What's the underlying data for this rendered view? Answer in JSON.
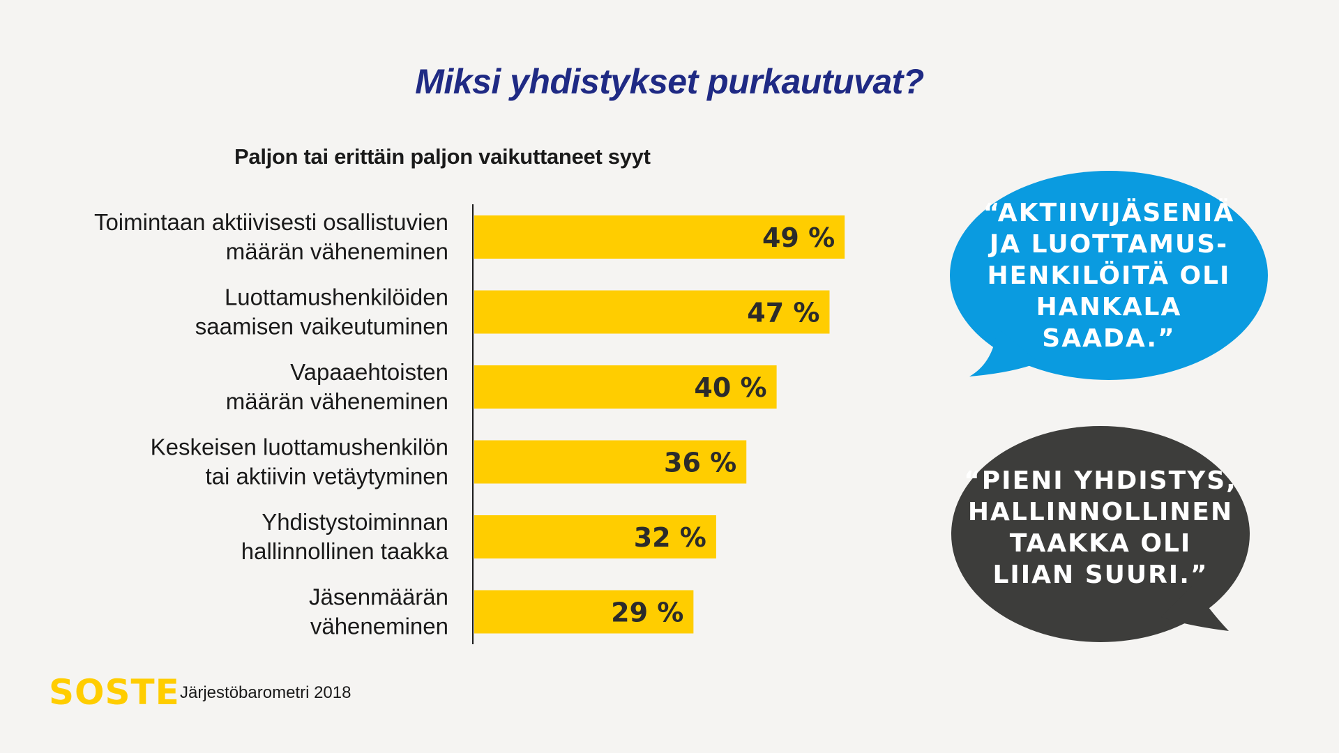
{
  "title": "Miksi yhdistykset purkautuvat?",
  "subtitle": "Paljon tai erittäin paljon vaikuttaneet syyt",
  "chart_data": {
    "type": "bar",
    "orientation": "horizontal",
    "title": "Miksi yhdistykset purkautuvat?",
    "subtitle": "Paljon tai erittäin paljon vaikuttaneet syyt",
    "categories": [
      [
        "Toimintaan aktiivisesti osallistuvien",
        "määrän väheneminen"
      ],
      [
        "Luottamushenkilöiden",
        "saamisen vaikeutuminen"
      ],
      [
        "Vapaaehtoisten",
        "määrän väheneminen"
      ],
      [
        "Keskeisen luottamushenkilön",
        "tai aktiivin vetäytyminen"
      ],
      [
        "Yhdistystoiminnan",
        "hallinnollinen taakka"
      ],
      [
        "Jäsenmäärän",
        "väheneminen"
      ]
    ],
    "values": [
      49,
      47,
      40,
      36,
      32,
      29
    ],
    "value_labels": [
      "49 %",
      "47 %",
      "40 %",
      "36 %",
      "32 %",
      "29 %"
    ],
    "bar_color": "#ffcd00",
    "grid": false
  },
  "quotes": [
    {
      "text": "“AKTIIVIJÄSENIÄ\nJA LUOTTAMUS-\nHENKILÖITÄ OLI\nHANKALA\nSAADA.”",
      "color": "#0a9be0"
    },
    {
      "text": "“PIENI YHDISTYS,\nHALLINNOLLINEN\nTAAKKA OLI\nLIIAN SUURI.”",
      "color": "#3d3d3b"
    }
  ],
  "logo": "SOSTE",
  "source": "Järjestöbarometri 2018"
}
